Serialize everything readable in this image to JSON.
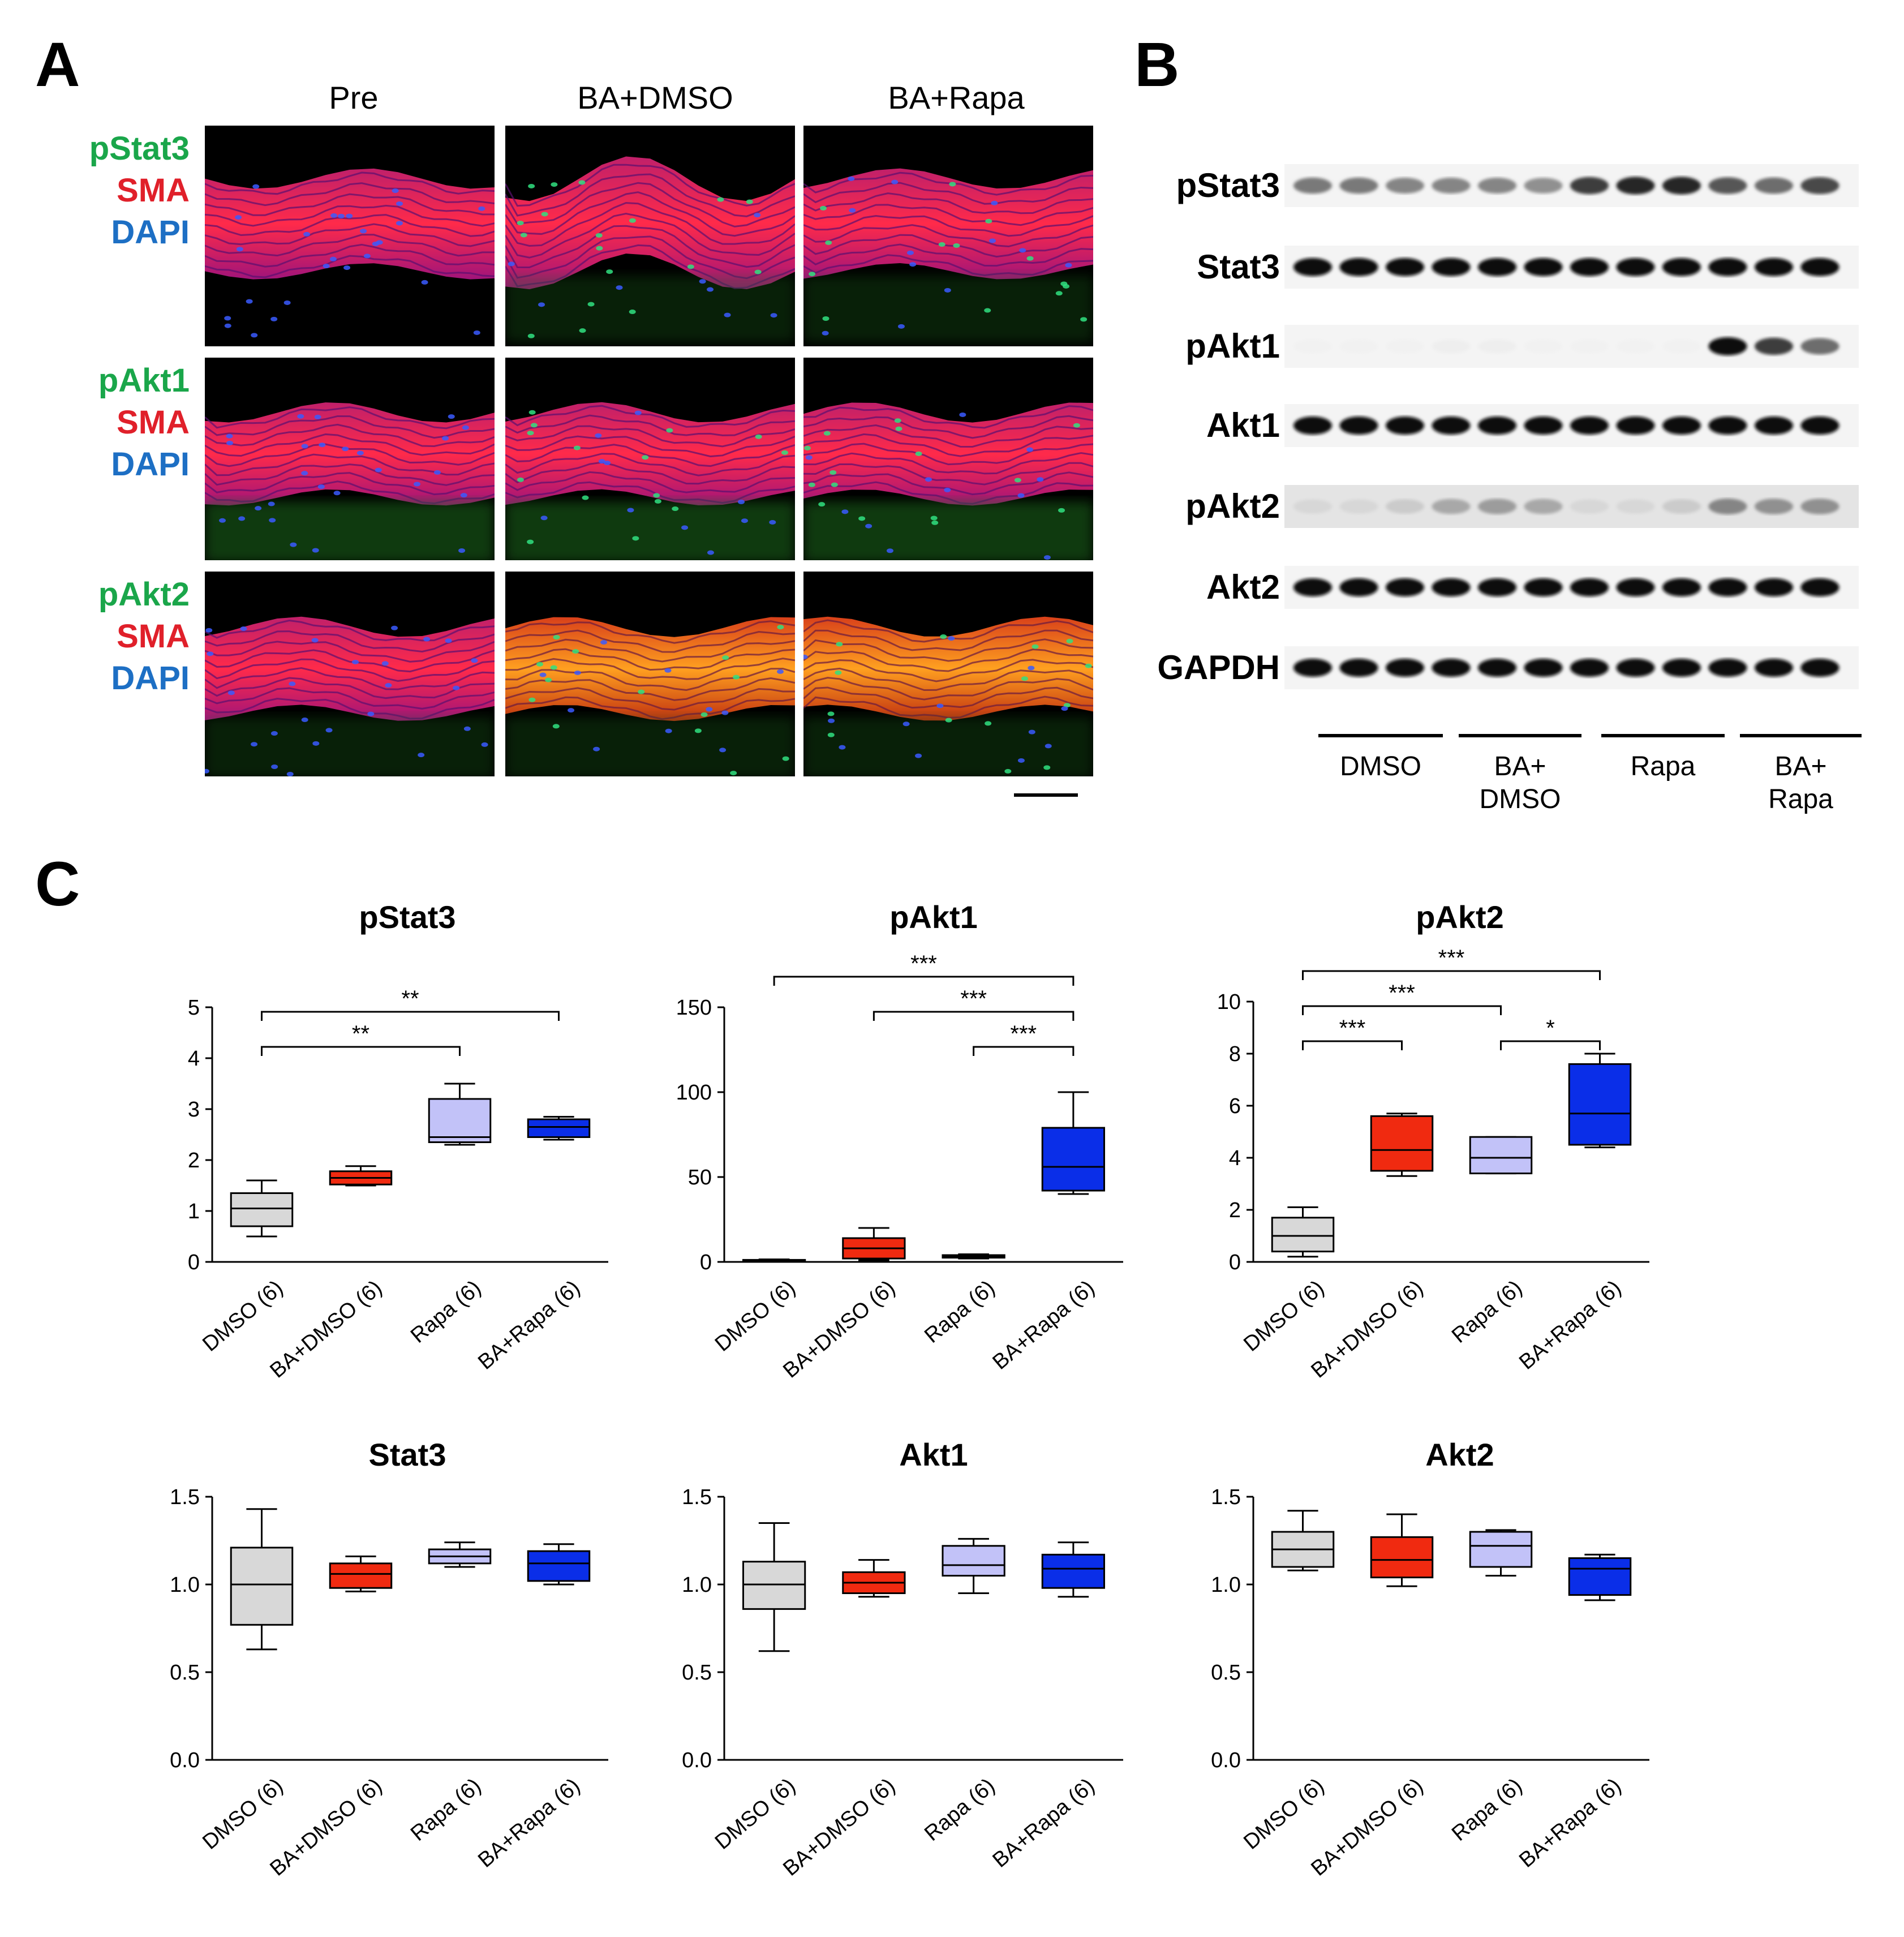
{
  "panels": {
    "A": {
      "letter": "A",
      "columns": [
        "Pre",
        "BA+DMSO",
        "BA+Rapa"
      ],
      "rows": [
        {
          "labels": [
            {
              "text": "pStat3",
              "color": "#1aa64a"
            },
            {
              "text": "SMA",
              "color": "#e0202a"
            },
            {
              "text": "DAPI",
              "color": "#1d6fc4"
            }
          ],
          "marker_color": "#30e080"
        },
        {
          "labels": [
            {
              "text": "pAkt1",
              "color": "#1aa64a"
            },
            {
              "text": "SMA",
              "color": "#e0202a"
            },
            {
              "text": "DAPI",
              "color": "#1d6fc4"
            }
          ],
          "marker_color": "#30e080"
        },
        {
          "labels": [
            {
              "text": "pAkt2",
              "color": "#1aa64a"
            },
            {
              "text": "SMA",
              "color": "#e0202a"
            },
            {
              "text": "DAPI",
              "color": "#1d6fc4"
            }
          ],
          "marker_color": "#30e080"
        }
      ]
    },
    "B": {
      "letter": "B",
      "bands": [
        {
          "label": "pStat3",
          "intensity": [
            0.55,
            0.55,
            0.5,
            0.5,
            0.5,
            0.45,
            0.8,
            0.9,
            0.9,
            0.7,
            0.6,
            0.75
          ]
        },
        {
          "label": "Stat3",
          "intensity": [
            1,
            1,
            1,
            1,
            1,
            1,
            1,
            1,
            1,
            1,
            1,
            1
          ]
        },
        {
          "label": "pAkt1",
          "intensity": [
            0.04,
            0.04,
            0.04,
            0.05,
            0.05,
            0.04,
            0.04,
            0.04,
            0.04,
            1,
            0.8,
            0.6
          ]
        },
        {
          "label": "Akt1",
          "intensity": [
            1,
            1,
            1,
            1,
            1,
            1,
            1,
            1,
            1,
            1,
            1,
            1
          ]
        },
        {
          "label": "pAkt2",
          "intensity": [
            0.15,
            0.15,
            0.2,
            0.35,
            0.4,
            0.35,
            0.15,
            0.15,
            0.2,
            0.5,
            0.45,
            0.45
          ]
        },
        {
          "label": "Akt2",
          "intensity": [
            1,
            1,
            1,
            1,
            1,
            1,
            1,
            1,
            1,
            1,
            1,
            1
          ]
        },
        {
          "label": "GAPDH",
          "intensity": [
            1,
            1,
            1,
            1,
            1,
            1,
            1,
            1,
            1,
            1,
            1,
            1
          ]
        }
      ],
      "groups": [
        {
          "lines": [
            "DMSO"
          ]
        },
        {
          "lines": [
            "BA+",
            "DMSO"
          ]
        },
        {
          "lines": [
            "Rapa"
          ]
        },
        {
          "lines": [
            "BA+",
            "Rapa"
          ]
        }
      ]
    },
    "C": {
      "letter": "C"
    }
  },
  "colors": {
    "DMSO": "#d8d8d8",
    "BA+DMSO": "#f02a10",
    "Rapa": "#c2c2f8",
    "BA+Rapa": "#0a2ee8"
  },
  "chart_data": [
    {
      "type": "box",
      "title": "pStat3",
      "categories": [
        "DMSO (6)",
        "BA+DMSO (6)",
        "Rapa (6)",
        "BA+Rapa (6)"
      ],
      "ylim": [
        0,
        5
      ],
      "yticks": [
        "0",
        "1",
        "2",
        "3",
        "4",
        "5"
      ],
      "boxes": [
        {
          "min": 0.5,
          "q1": 0.7,
          "median": 1.05,
          "q3": 1.35,
          "max": 1.6
        },
        {
          "min": 1.5,
          "q1": 1.52,
          "median": 1.65,
          "q3": 1.78,
          "max": 1.88
        },
        {
          "min": 2.3,
          "q1": 2.35,
          "median": 2.45,
          "q3": 3.2,
          "max": 3.5
        },
        {
          "min": 2.4,
          "q1": 2.45,
          "median": 2.65,
          "q3": 2.8,
          "max": 2.85
        }
      ],
      "significance": [
        {
          "from": 0,
          "to": 2,
          "label": "**",
          "level": 0
        },
        {
          "from": 0,
          "to": 3,
          "label": "**",
          "level": 1
        }
      ]
    },
    {
      "type": "box",
      "title": "pAkt1",
      "categories": [
        "DMSO (6)",
        "BA+DMSO (6)",
        "Rapa (6)",
        "BA+Rapa (6)"
      ],
      "ylim": [
        0,
        150
      ],
      "yticks": [
        "0",
        "50",
        "100",
        "150"
      ],
      "boxes": [
        {
          "min": 0.5,
          "q1": 0.8,
          "median": 1.0,
          "q3": 1.2,
          "max": 1.5
        },
        {
          "min": 1,
          "q1": 2,
          "median": 8,
          "q3": 14,
          "max": 20
        },
        {
          "min": 2,
          "q1": 2.5,
          "median": 3,
          "q3": 4,
          "max": 4.5
        },
        {
          "min": 40,
          "q1": 42,
          "median": 56,
          "q3": 79,
          "max": 100
        }
      ],
      "significance": [
        {
          "from": 2,
          "to": 3,
          "label": "***",
          "level": 0
        },
        {
          "from": 1,
          "to": 3,
          "label": "***",
          "level": 1
        },
        {
          "from": 0,
          "to": 3,
          "label": "***",
          "level": 2
        }
      ]
    },
    {
      "type": "box",
      "title": "pAkt2",
      "categories": [
        "DMSO (6)",
        "BA+DMSO (6)",
        "Rapa (6)",
        "BA+Rapa (6)"
      ],
      "ylim": [
        0,
        10
      ],
      "yticks": [
        "0",
        "2",
        "4",
        "6",
        "8",
        "10"
      ],
      "boxes": [
        {
          "min": 0.2,
          "q1": 0.4,
          "median": 1.0,
          "q3": 1.7,
          "max": 2.1
        },
        {
          "min": 3.3,
          "q1": 3.5,
          "median": 4.3,
          "q3": 5.6,
          "max": 5.7
        },
        {
          "min": 3.4,
          "q1": 3.4,
          "median": 4.0,
          "q3": 4.8,
          "max": 4.8
        },
        {
          "min": 4.4,
          "q1": 4.5,
          "median": 5.7,
          "q3": 7.6,
          "max": 8.0
        }
      ],
      "significance": [
        {
          "from": 0,
          "to": 1,
          "label": "***",
          "level": 0
        },
        {
          "from": 2,
          "to": 3,
          "label": "*",
          "level": 0
        },
        {
          "from": 0,
          "to": 2,
          "label": "***",
          "level": 1
        },
        {
          "from": 0,
          "to": 3,
          "label": "***",
          "level": 2
        }
      ]
    },
    {
      "type": "box",
      "title": "Stat3",
      "categories": [
        "DMSO (6)",
        "BA+DMSO (6)",
        "Rapa (6)",
        "BA+Rapa (6)"
      ],
      "ylim": [
        0,
        1.5
      ],
      "yticks": [
        "0.0",
        "0.5",
        "1.0",
        "1.5"
      ],
      "boxes": [
        {
          "min": 0.63,
          "q1": 0.77,
          "median": 1.0,
          "q3": 1.21,
          "max": 1.43
        },
        {
          "min": 0.96,
          "q1": 0.98,
          "median": 1.06,
          "q3": 1.12,
          "max": 1.16
        },
        {
          "min": 1.1,
          "q1": 1.12,
          "median": 1.16,
          "q3": 1.2,
          "max": 1.24
        },
        {
          "min": 1.0,
          "q1": 1.02,
          "median": 1.12,
          "q3": 1.19,
          "max": 1.23
        }
      ],
      "significance": []
    },
    {
      "type": "box",
      "title": "Akt1",
      "categories": [
        "DMSO (6)",
        "BA+DMSO (6)",
        "Rapa (6)",
        "BA+Rapa (6)"
      ],
      "ylim": [
        0,
        1.5
      ],
      "yticks": [
        "0.0",
        "0.5",
        "1.0",
        "1.5"
      ],
      "boxes": [
        {
          "min": 0.62,
          "q1": 0.86,
          "median": 1.0,
          "q3": 1.13,
          "max": 1.35
        },
        {
          "min": 0.93,
          "q1": 0.95,
          "median": 1.01,
          "q3": 1.07,
          "max": 1.14
        },
        {
          "min": 0.95,
          "q1": 1.05,
          "median": 1.11,
          "q3": 1.22,
          "max": 1.26
        },
        {
          "min": 0.93,
          "q1": 0.98,
          "median": 1.09,
          "q3": 1.17,
          "max": 1.24
        }
      ],
      "significance": []
    },
    {
      "type": "box",
      "title": "Akt2",
      "categories": [
        "DMSO (6)",
        "BA+DMSO (6)",
        "Rapa (6)",
        "BA+Rapa (6)"
      ],
      "ylim": [
        0,
        1.5
      ],
      "yticks": [
        "0.0",
        "0.5",
        "1.0",
        "1.5"
      ],
      "boxes": [
        {
          "min": 1.08,
          "q1": 1.1,
          "median": 1.2,
          "q3": 1.3,
          "max": 1.42
        },
        {
          "min": 0.99,
          "q1": 1.04,
          "median": 1.14,
          "q3": 1.27,
          "max": 1.4
        },
        {
          "min": 1.05,
          "q1": 1.1,
          "median": 1.22,
          "q3": 1.3,
          "max": 1.31
        },
        {
          "min": 0.91,
          "q1": 0.94,
          "median": 1.09,
          "q3": 1.15,
          "max": 1.17
        }
      ],
      "significance": []
    }
  ]
}
